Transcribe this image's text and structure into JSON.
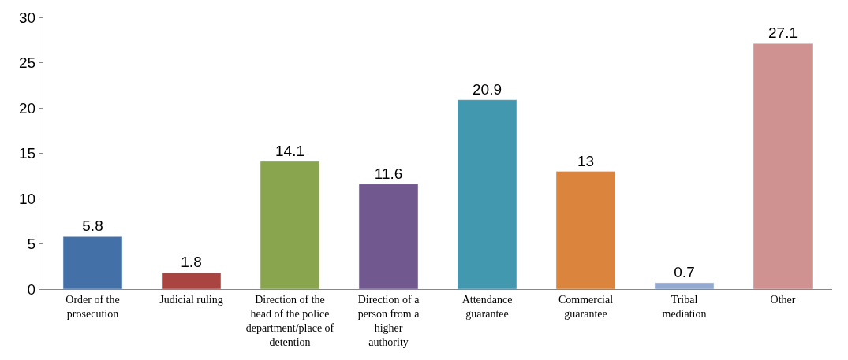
{
  "chart_data": {
    "type": "bar",
    "categories": [
      "Order of the prosecution",
      "Judicial ruling",
      "Direction of the head of the police department/place of detention",
      "Direction of a person from a higher authority",
      "Attendance guarantee",
      "Commercial guarantee",
      "Tribal mediation",
      "Other"
    ],
    "values": [
      5.8,
      1.8,
      14.1,
      11.6,
      20.9,
      13,
      0.7,
      27.1
    ],
    "colors": [
      "#4470a8",
      "#aa4441",
      "#89a54e",
      "#71588f",
      "#4198af",
      "#db843d",
      "#93a9cf",
      "#d09191"
    ],
    "ylim": [
      0,
      30
    ],
    "yticks": [
      0,
      5,
      10,
      15,
      20,
      25,
      30
    ],
    "data_labels": true
  }
}
